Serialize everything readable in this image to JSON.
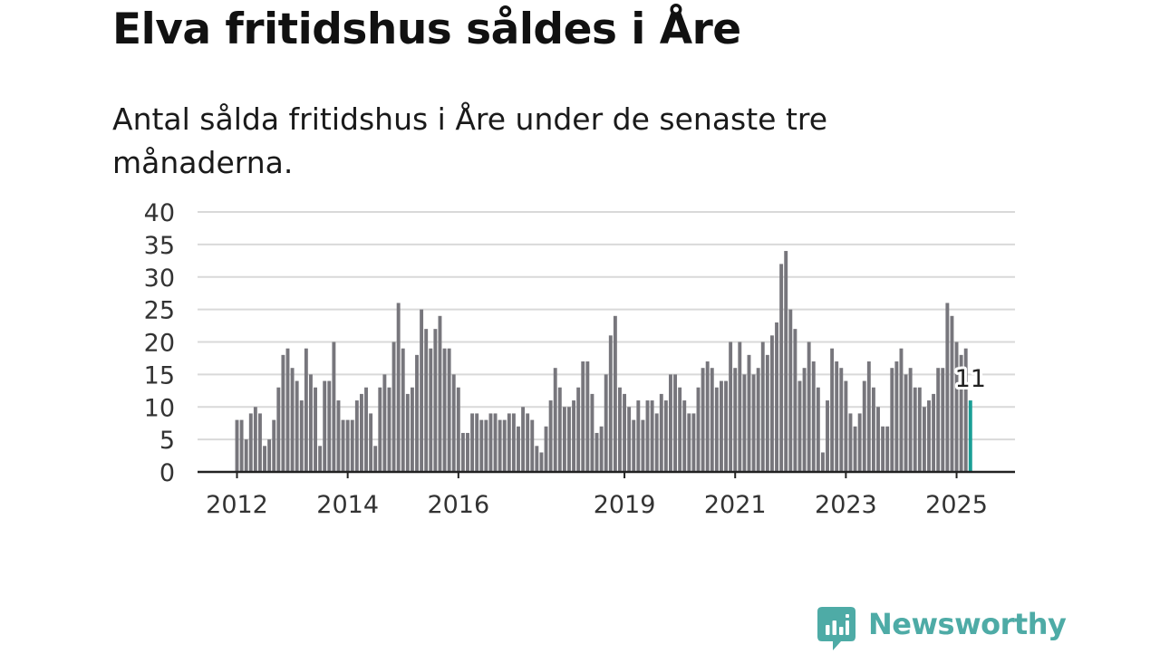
{
  "header": {
    "title": "Elva fritidshus såldes i Åre",
    "subtitle": "Antal sålda fritidshus i Åre under de senaste tre månaderna."
  },
  "colors": {
    "bar": "#77767c",
    "highlight": "#1a9e96",
    "grid": "#d9d9d9",
    "axis": "#222222",
    "brand": "#4eaba6"
  },
  "brand": {
    "name": "Newsworthy",
    "icon": "newsworthy-logo-icon"
  },
  "chart_data": {
    "type": "bar",
    "title": "",
    "xlabel": "",
    "ylabel": "",
    "ylim": [
      0,
      40
    ],
    "y_ticks": [
      "0",
      "5",
      "10",
      "15",
      "20",
      "25",
      "30",
      "35",
      "40"
    ],
    "x_ticks": [
      {
        "label": "2012",
        "value": "2012-01"
      },
      {
        "label": "2014",
        "value": "2014-01"
      },
      {
        "label": "2016",
        "value": "2016-01"
      },
      {
        "label": "2019",
        "value": "2019-01"
      },
      {
        "label": "2021",
        "value": "2021-01"
      },
      {
        "label": "2023",
        "value": "2023-01"
      },
      {
        "label": "2025",
        "value": "2025-01"
      }
    ],
    "grid": true,
    "highlight": {
      "category": "2025-04",
      "value": 11,
      "label": "11"
    },
    "categories": [
      "2012-01",
      "2012-02",
      "2012-03",
      "2012-04",
      "2012-05",
      "2012-06",
      "2012-07",
      "2012-08",
      "2012-09",
      "2012-10",
      "2012-11",
      "2012-12",
      "2013-01",
      "2013-02",
      "2013-03",
      "2013-04",
      "2013-05",
      "2013-06",
      "2013-07",
      "2013-08",
      "2013-09",
      "2013-10",
      "2013-11",
      "2013-12",
      "2014-01",
      "2014-02",
      "2014-03",
      "2014-04",
      "2014-05",
      "2014-06",
      "2014-07",
      "2014-08",
      "2014-09",
      "2014-10",
      "2014-11",
      "2014-12",
      "2015-01",
      "2015-02",
      "2015-03",
      "2015-04",
      "2015-05",
      "2015-06",
      "2015-07",
      "2015-08",
      "2015-09",
      "2015-10",
      "2015-11",
      "2015-12",
      "2016-01",
      "2016-02",
      "2016-03",
      "2016-04",
      "2016-05",
      "2016-06",
      "2016-07",
      "2016-08",
      "2016-09",
      "2016-10",
      "2016-11",
      "2016-12",
      "2017-01",
      "2017-02",
      "2017-03",
      "2017-04",
      "2017-05",
      "2017-06",
      "2017-07",
      "2017-08",
      "2017-09",
      "2017-10",
      "2017-11",
      "2017-12",
      "2018-01",
      "2018-02",
      "2018-03",
      "2018-04",
      "2018-05",
      "2018-06",
      "2018-07",
      "2018-08",
      "2018-09",
      "2018-10",
      "2018-11",
      "2018-12",
      "2019-01",
      "2019-02",
      "2019-03",
      "2019-04",
      "2019-05",
      "2019-06",
      "2019-07",
      "2019-08",
      "2019-09",
      "2019-10",
      "2019-11",
      "2019-12",
      "2020-01",
      "2020-02",
      "2020-03",
      "2020-04",
      "2020-05",
      "2020-06",
      "2020-07",
      "2020-08",
      "2020-09",
      "2020-10",
      "2020-11",
      "2020-12",
      "2021-01",
      "2021-02",
      "2021-03",
      "2021-04",
      "2021-05",
      "2021-06",
      "2021-07",
      "2021-08",
      "2021-09",
      "2021-10",
      "2021-11",
      "2021-12",
      "2022-01",
      "2022-02",
      "2022-03",
      "2022-04",
      "2022-05",
      "2022-06",
      "2022-07",
      "2022-08",
      "2022-09",
      "2022-10",
      "2022-11",
      "2022-12",
      "2023-01",
      "2023-02",
      "2023-03",
      "2023-04",
      "2023-05",
      "2023-06",
      "2023-07",
      "2023-08",
      "2023-09",
      "2023-10",
      "2023-11",
      "2023-12",
      "2024-01",
      "2024-02",
      "2024-03",
      "2024-04",
      "2024-05",
      "2024-06",
      "2024-07",
      "2024-08",
      "2024-09",
      "2024-10",
      "2024-11",
      "2024-12",
      "2025-01",
      "2025-02",
      "2025-03",
      "2025-04"
    ],
    "values": [
      8,
      8,
      5,
      9,
      10,
      9,
      4,
      5,
      8,
      13,
      18,
      19,
      16,
      14,
      11,
      19,
      15,
      13,
      4,
      14,
      14,
      20,
      11,
      8,
      8,
      8,
      11,
      12,
      13,
      9,
      4,
      13,
      15,
      13,
      20,
      26,
      19,
      12,
      13,
      18,
      25,
      22,
      19,
      22,
      24,
      19,
      19,
      15,
      13,
      6,
      6,
      9,
      9,
      8,
      8,
      9,
      9,
      8,
      8,
      9,
      9,
      7,
      10,
      9,
      8,
      4,
      3,
      7,
      11,
      16,
      13,
      10,
      10,
      11,
      13,
      17,
      17,
      12,
      6,
      7,
      15,
      21,
      24,
      13,
      12,
      10,
      8,
      11,
      8,
      11,
      11,
      9,
      12,
      11,
      15,
      15,
      13,
      11,
      9,
      9,
      13,
      16,
      17,
      16,
      13,
      14,
      14,
      20,
      16,
      20,
      15,
      18,
      15,
      16,
      20,
      18,
      21,
      23,
      32,
      34,
      25,
      22,
      14,
      16,
      20,
      17,
      13,
      3,
      11,
      19,
      17,
      16,
      14,
      9,
      7,
      9,
      14,
      17,
      13,
      10,
      7,
      7,
      16,
      17,
      19,
      15,
      16,
      13,
      13,
      10,
      11,
      12,
      16,
      16,
      26,
      24,
      20,
      18,
      19,
      11
    ]
  }
}
